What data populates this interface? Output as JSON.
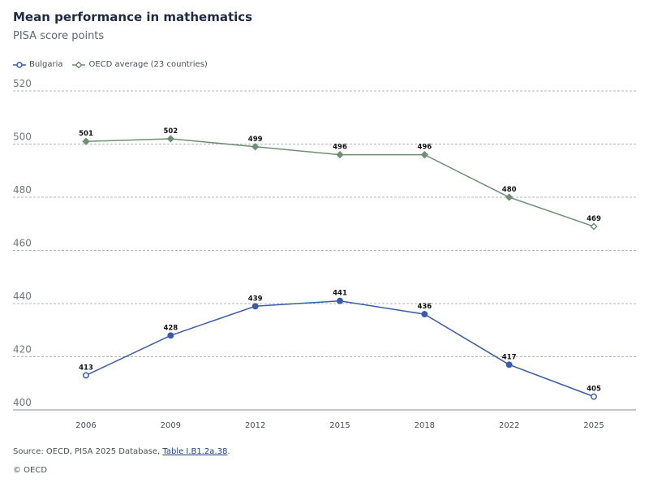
{
  "title": "Mean performance in mathematics",
  "subtitle": "PISA score points",
  "legend": [
    {
      "name": "Bulgaria",
      "color": "#3a5ba8",
      "marker": "circle"
    },
    {
      "name": "OECD average (23 countries)",
      "color": "#6e8f72",
      "marker": "diamond"
    }
  ],
  "footer": {
    "source_prefix": "Source: OECD, PISA 2025 Database, ",
    "source_link": "Table I.B1.2a.38",
    "source_suffix": ".",
    "copyright": "© OECD"
  },
  "chart_data": {
    "type": "line",
    "x": [
      "2006",
      "2009",
      "2012",
      "2015",
      "2018",
      "2022",
      "2025"
    ],
    "ylim": [
      400,
      520
    ],
    "yticks": [
      400,
      420,
      440,
      460,
      480,
      500,
      520
    ],
    "grid": true,
    "legend_position": "top-left",
    "series": [
      {
        "name": "Bulgaria",
        "color": "#3a5ba8",
        "marker": "circle",
        "values": [
          413,
          428,
          439,
          441,
          436,
          417,
          405
        ],
        "hollow": [
          true,
          false,
          false,
          false,
          false,
          false,
          true
        ]
      },
      {
        "name": "OECD average (23 countries)",
        "color": "#6e8f72",
        "marker": "diamond",
        "values": [
          501,
          502,
          499,
          496,
          496,
          480,
          469
        ],
        "hollow": [
          false,
          false,
          false,
          false,
          false,
          false,
          true
        ]
      }
    ]
  }
}
